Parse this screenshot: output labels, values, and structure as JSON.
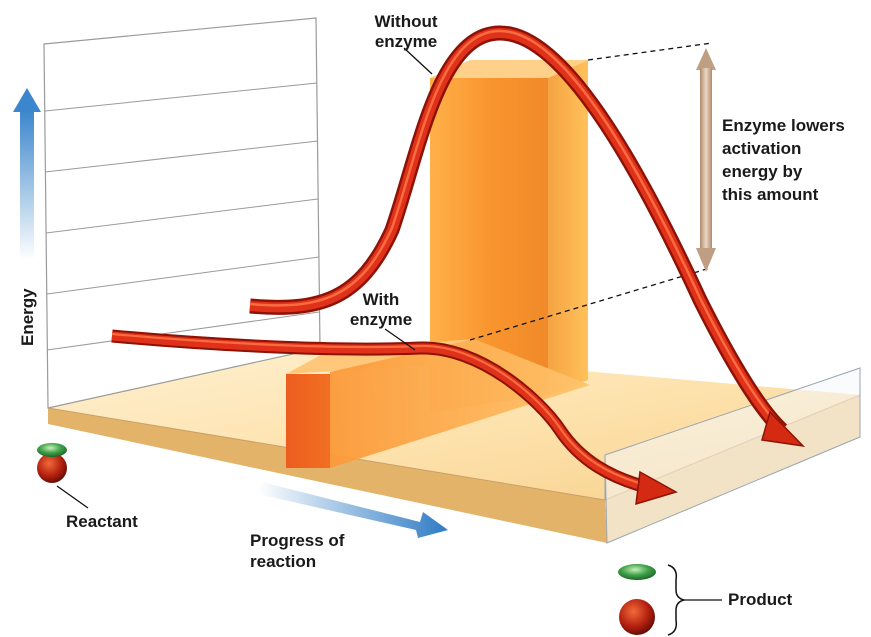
{
  "labels": {
    "without_enzyme": "Without\nenzyme",
    "with_enzyme": "With\nenzyme",
    "enzyme_lowers": "Enzyme lowers\nactivation\nenergy by\nthis amount",
    "energy_axis": "Energy",
    "progress_axis": "Progress of\nreaction",
    "reactant": "Reactant",
    "product": "Product"
  },
  "colors": {
    "curve": "#d42a12",
    "curve_dark": "#8e1206",
    "block_front": "#f59a35",
    "block_side": "#e8742a",
    "block_top": "#ffc87a",
    "floor": "#fde3b0",
    "floor_edge": "#d9a35a",
    "axis_arrow": "#4d92cf",
    "measure_arrow": "#c7a78a",
    "molecule_green": "#3fa24a",
    "molecule_red": "#b3200f"
  }
}
